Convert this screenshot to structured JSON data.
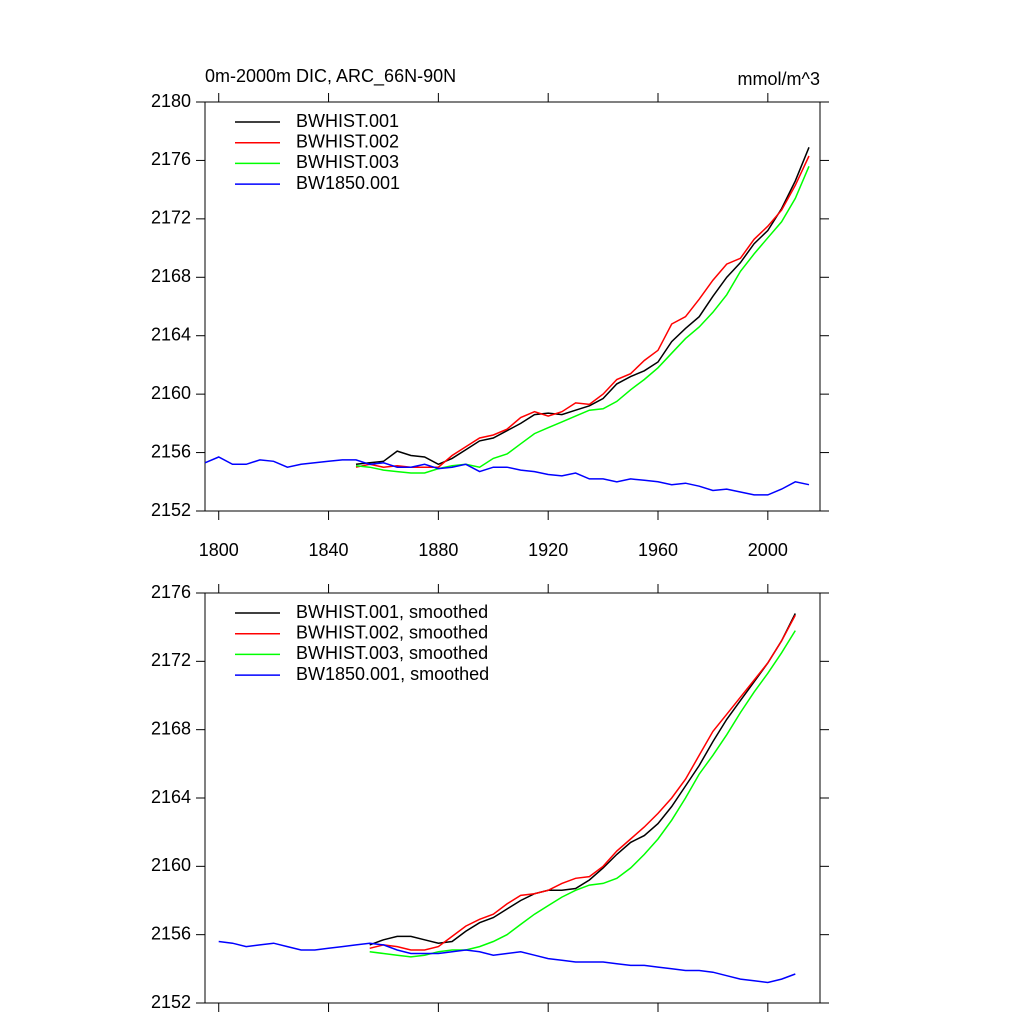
{
  "chart_data": [
    {
      "type": "line",
      "title": "0m-2000m DIC, ARC_66N-90N",
      "units": "mmol/m^3",
      "x": [
        1795,
        1800,
        1805,
        1810,
        1815,
        1820,
        1825,
        1830,
        1835,
        1840,
        1845,
        1850,
        1855,
        1860,
        1865,
        1870,
        1875,
        1880,
        1885,
        1890,
        1895,
        1900,
        1905,
        1910,
        1915,
        1920,
        1925,
        1930,
        1935,
        1940,
        1945,
        1950,
        1955,
        1960,
        1965,
        1970,
        1975,
        1980,
        1985,
        1990,
        1995,
        2000,
        2005,
        2010,
        2015
      ],
      "series": [
        {
          "name": "BWHIST.001",
          "color": "#000000",
          "values": [
            null,
            null,
            null,
            null,
            null,
            null,
            null,
            null,
            null,
            null,
            null,
            2155.2,
            2155.3,
            2155.4,
            2156.1,
            2155.8,
            2155.7,
            2155.2,
            2155.6,
            2156.2,
            2156.8,
            2157.0,
            2157.5,
            2158.0,
            2158.6,
            2158.7,
            2158.6,
            2158.9,
            2159.2,
            2159.7,
            2160.7,
            2161.2,
            2161.6,
            2162.2,
            2163.6,
            2164.5,
            2165.3,
            2166.7,
            2168.0,
            2169.0,
            2170.3,
            2171.2,
            2172.7,
            2174.6,
            2176.9
          ]
        },
        {
          "name": "BWHIST.002",
          "color": "#ff0000",
          "values": [
            null,
            null,
            null,
            null,
            null,
            null,
            null,
            null,
            null,
            null,
            null,
            2155.0,
            2155.2,
            2155.0,
            2155.1,
            2155.0,
            2155.0,
            2155.0,
            2155.8,
            2156.4,
            2157.0,
            2157.2,
            2157.6,
            2158.4,
            2158.8,
            2158.5,
            2158.8,
            2159.4,
            2159.3,
            2160.0,
            2161.0,
            2161.4,
            2162.3,
            2163.0,
            2164.8,
            2165.3,
            2166.5,
            2167.8,
            2168.9,
            2169.3,
            2170.6,
            2171.5,
            2172.6,
            2174.3,
            2176.3
          ]
        },
        {
          "name": "BWHIST.003",
          "color": "#00ff00",
          "values": [
            null,
            null,
            null,
            null,
            null,
            null,
            null,
            null,
            null,
            null,
            null,
            2155.1,
            2155.0,
            2154.8,
            2154.7,
            2154.6,
            2154.6,
            2154.9,
            2155.1,
            2155.2,
            2155.0,
            2155.6,
            2155.9,
            2156.6,
            2157.3,
            2157.7,
            2158.1,
            2158.5,
            2158.9,
            2159.0,
            2159.5,
            2160.3,
            2161.0,
            2161.8,
            2162.8,
            2163.8,
            2164.6,
            2165.6,
            2166.8,
            2168.4,
            2169.6,
            2170.7,
            2171.8,
            2173.4,
            2175.6
          ]
        },
        {
          "name": "BW1850.001",
          "color": "#0000ff",
          "values": [
            2155.3,
            2155.7,
            2155.2,
            2155.2,
            2155.5,
            2155.4,
            2155.0,
            2155.2,
            2155.3,
            2155.4,
            2155.5,
            2155.5,
            2155.2,
            2155.3,
            2155.0,
            2155.0,
            2155.2,
            2154.9,
            2155.0,
            2155.2,
            2154.7,
            2155.0,
            2155.0,
            2154.8,
            2154.7,
            2154.5,
            2154.4,
            2154.6,
            2154.2,
            2154.2,
            2154.0,
            2154.2,
            2154.1,
            2154.0,
            2153.8,
            2153.9,
            2153.7,
            2153.4,
            2153.5,
            2153.3,
            2153.1,
            2153.1,
            2153.5,
            2154.0,
            2153.8
          ]
        }
      ],
      "xlim": [
        1795,
        2019
      ],
      "ylim": [
        2152,
        2180
      ],
      "xticks": [
        1800,
        1840,
        1880,
        1920,
        1960,
        2000
      ],
      "yticks": [
        2152,
        2156,
        2160,
        2164,
        2168,
        2172,
        2176,
        2180
      ],
      "legend": "upper left"
    },
    {
      "type": "line",
      "x": [
        1800,
        1805,
        1810,
        1815,
        1820,
        1825,
        1830,
        1835,
        1840,
        1845,
        1850,
        1855,
        1860,
        1865,
        1870,
        1875,
        1880,
        1885,
        1890,
        1895,
        1900,
        1905,
        1910,
        1915,
        1920,
        1925,
        1930,
        1935,
        1940,
        1945,
        1950,
        1955,
        1960,
        1965,
        1970,
        1975,
        1980,
        1985,
        1990,
        1995,
        2000,
        2005,
        2010
      ],
      "series": [
        {
          "name": "BWHIST.001, smoothed",
          "color": "#000000",
          "values": [
            null,
            null,
            null,
            null,
            null,
            null,
            null,
            null,
            null,
            null,
            null,
            2155.4,
            2155.7,
            2155.9,
            2155.9,
            2155.7,
            2155.5,
            2155.6,
            2156.2,
            2156.7,
            2157.0,
            2157.5,
            2158.0,
            2158.4,
            2158.6,
            2158.6,
            2158.7,
            2159.2,
            2159.9,
            2160.7,
            2161.4,
            2161.8,
            2162.5,
            2163.5,
            2164.7,
            2165.9,
            2167.3,
            2168.6,
            2169.7,
            2170.8,
            2171.9,
            2173.2,
            2174.8
          ]
        },
        {
          "name": "BWHIST.002, smoothed",
          "color": "#ff0000",
          "values": [
            null,
            null,
            null,
            null,
            null,
            null,
            null,
            null,
            null,
            null,
            null,
            2155.2,
            2155.4,
            2155.3,
            2155.1,
            2155.1,
            2155.3,
            2155.9,
            2156.5,
            2156.9,
            2157.2,
            2157.8,
            2158.3,
            2158.4,
            2158.6,
            2159.0,
            2159.3,
            2159.4,
            2160.0,
            2160.9,
            2161.6,
            2162.3,
            2163.1,
            2164.0,
            2165.1,
            2166.5,
            2167.9,
            2168.9,
            2169.9,
            2170.9,
            2171.9,
            2173.2,
            2174.7
          ]
        },
        {
          "name": "BWHIST.003, smoothed",
          "color": "#00ff00",
          "values": [
            null,
            null,
            null,
            null,
            null,
            null,
            null,
            null,
            null,
            null,
            null,
            2155.0,
            2154.9,
            2154.8,
            2154.7,
            2154.8,
            2155.0,
            2155.1,
            2155.1,
            2155.3,
            2155.6,
            2156.0,
            2156.6,
            2157.2,
            2157.7,
            2158.2,
            2158.6,
            2158.9,
            2159.0,
            2159.3,
            2159.9,
            2160.7,
            2161.6,
            2162.7,
            2164.0,
            2165.4,
            2166.5,
            2167.7,
            2169.0,
            2170.2,
            2171.3,
            2172.5,
            2173.8
          ]
        },
        {
          "name": "BW1850.001, smoothed",
          "color": "#0000ff",
          "values": [
            2155.6,
            2155.5,
            2155.3,
            2155.4,
            2155.5,
            2155.3,
            2155.1,
            2155.1,
            2155.2,
            2155.3,
            2155.4,
            2155.5,
            2155.4,
            2155.1,
            2154.9,
            2154.9,
            2154.9,
            2155.0,
            2155.1,
            2155.0,
            2154.8,
            2154.9,
            2155.0,
            2154.8,
            2154.6,
            2154.5,
            2154.4,
            2154.4,
            2154.4,
            2154.3,
            2154.2,
            2154.2,
            2154.1,
            2154.0,
            2153.9,
            2153.9,
            2153.8,
            2153.6,
            2153.4,
            2153.3,
            2153.2,
            2153.4,
            2153.7
          ]
        }
      ],
      "xlim": [
        1795,
        2019
      ],
      "ylim": [
        2152,
        2176
      ],
      "yticks": [
        2152,
        2156,
        2160,
        2164,
        2168,
        2172,
        2176
      ],
      "legend": "upper left"
    }
  ]
}
